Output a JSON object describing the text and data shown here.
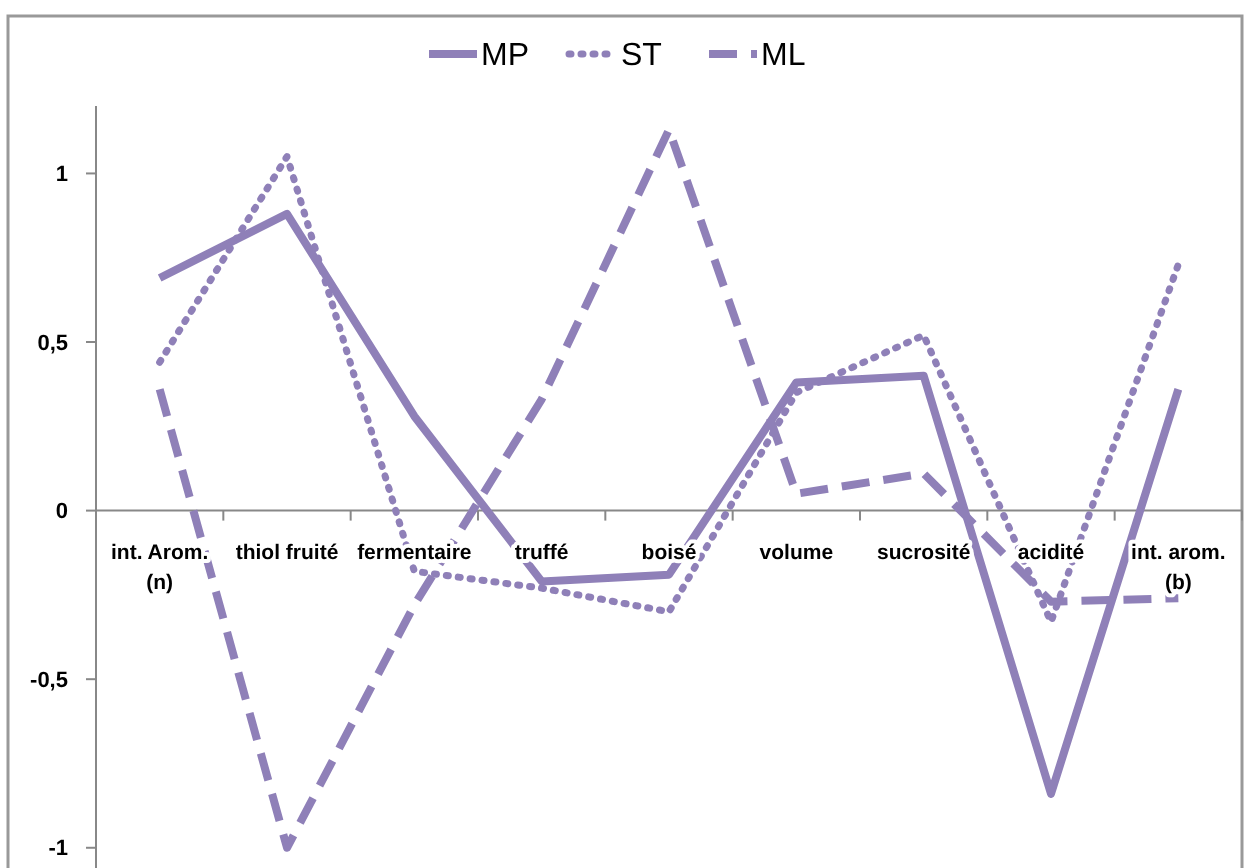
{
  "chart_data": {
    "type": "line",
    "categories": [
      "int. Arom. (n)",
      "thiol fruité",
      "fermentaire",
      "truffé",
      "boisé",
      "volume",
      "sucrosité",
      "acidité",
      "int. arom. (b)"
    ],
    "series": [
      {
        "name": "MP",
        "color": "#8f80b8",
        "line_style": "solid",
        "values": [
          0.69,
          0.88,
          0.28,
          -0.21,
          -0.19,
          0.38,
          0.4,
          -0.84,
          0.36
        ]
      },
      {
        "name": "ST",
        "color": "#8f80b8",
        "line_style": "dotted",
        "values": [
          0.44,
          1.05,
          -0.18,
          -0.23,
          -0.3,
          0.35,
          0.52,
          -0.33,
          0.73
        ]
      },
      {
        "name": "ML",
        "color": "#8f80b8",
        "line_style": "dashed",
        "values": [
          0.36,
          -1.0,
          -0.28,
          0.33,
          1.13,
          0.05,
          0.11,
          -0.27,
          -0.26
        ]
      }
    ],
    "ylim": [
      -1.06,
      1.2
    ],
    "yticks": [
      {
        "value": -1,
        "label": "-1"
      },
      {
        "value": -0.5,
        "label": "-0,5"
      },
      0,
      {
        "value": 0.5,
        "label": "0,5"
      },
      1
    ],
    "grid": false,
    "legend": "top",
    "marker": "none"
  }
}
